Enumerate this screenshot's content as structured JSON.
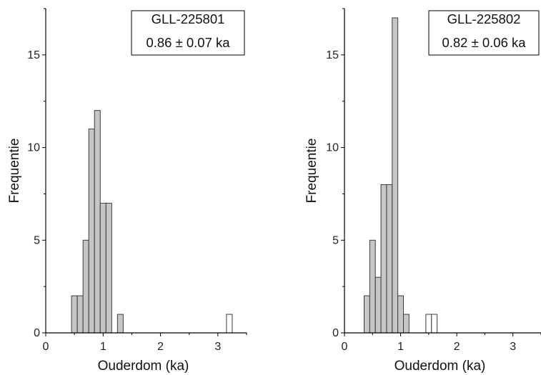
{
  "chart_data": [
    {
      "type": "bar",
      "xlabel": "Ouderdom (ka)",
      "ylabel": "Frequentie",
      "xlim": [
        0,
        3.5
      ],
      "ylim": [
        0,
        17.5
      ],
      "xticks": [
        0,
        1,
        2,
        3
      ],
      "yticks": [
        0,
        5,
        10,
        15
      ],
      "grid": false,
      "legend_position": "top-right",
      "legend_lines": [
        "GLL-225801",
        "0.86 ± 0.07 ka"
      ],
      "bin_width": 0.1,
      "series": [
        {
          "style": "filled",
          "bins": [
            {
              "x": 0.5,
              "count": 2
            },
            {
              "x": 0.6,
              "count": 2
            },
            {
              "x": 0.7,
              "count": 5
            },
            {
              "x": 0.8,
              "count": 11
            },
            {
              "x": 0.9,
              "count": 12
            },
            {
              "x": 1.0,
              "count": 7
            },
            {
              "x": 1.1,
              "count": 7
            },
            {
              "x": 1.3,
              "count": 1
            }
          ]
        },
        {
          "style": "open",
          "bins": [
            {
              "x": 3.2,
              "count": 1
            }
          ]
        }
      ]
    },
    {
      "type": "bar",
      "xlabel": "Ouderdom (ka)",
      "ylabel": "Frequentie",
      "xlim": [
        0,
        3.5
      ],
      "ylim": [
        0,
        17.5
      ],
      "xticks": [
        0,
        1,
        2,
        3
      ],
      "yticks": [
        0,
        5,
        10,
        15
      ],
      "grid": false,
      "legend_position": "top-right",
      "legend_lines": [
        "GLL-225802",
        "0.82 ± 0.06 ka"
      ],
      "bin_width": 0.1,
      "series": [
        {
          "style": "filled",
          "bins": [
            {
              "x": 0.4,
              "count": 2
            },
            {
              "x": 0.5,
              "count": 5
            },
            {
              "x": 0.6,
              "count": 3
            },
            {
              "x": 0.7,
              "count": 8
            },
            {
              "x": 0.8,
              "count": 8
            },
            {
              "x": 0.9,
              "count": 17
            },
            {
              "x": 1.0,
              "count": 2
            },
            {
              "x": 1.1,
              "count": 1
            }
          ]
        },
        {
          "style": "open",
          "bins": [
            {
              "x": 1.5,
              "count": 1
            },
            {
              "x": 1.6,
              "count": 1
            }
          ]
        }
      ]
    }
  ],
  "colors": {
    "filled_bar": "#c6c6c6",
    "bar_edge": "#3c3c3c",
    "open_bar": "#ffffff",
    "axis": "#000000"
  }
}
